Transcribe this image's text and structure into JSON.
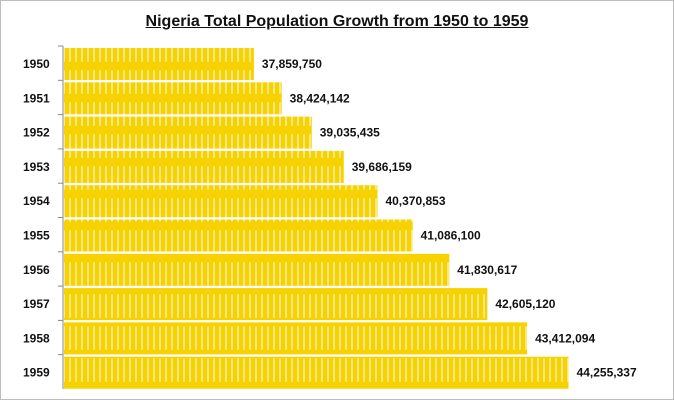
{
  "chart_data": {
    "type": "bar",
    "orientation": "horizontal",
    "title": "Nigeria Total Population Growth from 1950 to 1959",
    "categories": [
      "1950",
      "1951",
      "1952",
      "1953",
      "1954",
      "1955",
      "1956",
      "1957",
      "1958",
      "1959"
    ],
    "values": [
      37859750,
      38424142,
      39035435,
      39686159,
      40370853,
      41086100,
      41830617,
      42605120,
      43412094,
      44255337
    ],
    "data_labels": [
      "37,859,750",
      "38,424,142",
      "39,035,435",
      "39,686,159",
      "40,370,853",
      "41,086,100",
      "41,830,617",
      "42,605,120",
      "43,412,094",
      "44,255,337"
    ],
    "xlim": [
      34000000,
      46000000
    ],
    "grid": false,
    "bar_color": "#f5d200",
    "bar_pattern_color": "#fbe680"
  }
}
